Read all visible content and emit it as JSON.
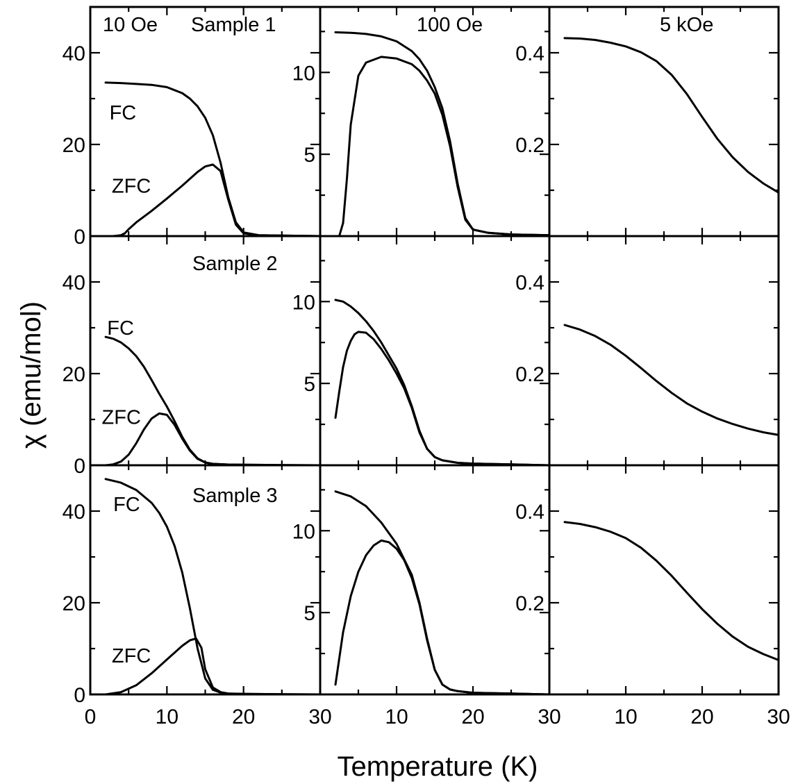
{
  "chart_data": {
    "type": "line",
    "xlabel": "Temperature (K)",
    "ylabel": "χ (emu/mol)",
    "xlim": [
      0,
      30
    ],
    "xticks": [
      0,
      10,
      20,
      30
    ],
    "xtick_labels": [
      "0",
      "10",
      "20",
      "30",
      "10",
      "20",
      "30",
      "10",
      "20",
      "30"
    ],
    "column_headers": [
      "10 Oe",
      "100 Oe",
      "5 kOe"
    ],
    "row_labels": [
      "Sample 1",
      "Sample 2",
      "Sample 3"
    ],
    "columns": [
      {
        "field": "10 Oe",
        "ylim": [
          0,
          50
        ],
        "yticks": [
          0,
          20,
          40
        ],
        "ytick_labels": [
          "0",
          "20",
          "40"
        ]
      },
      {
        "field": "100 Oe",
        "ylim": [
          0,
          14
        ],
        "yticks": [
          5,
          10
        ],
        "ytick_labels": [
          "5",
          "10"
        ]
      },
      {
        "field": "5 kOe",
        "ylim": [
          0,
          0.5
        ],
        "yticks": [
          0.2,
          0.4
        ],
        "ytick_labels": [
          "0.2",
          "0.4"
        ]
      }
    ],
    "panels": [
      {
        "row": 0,
        "col": 0,
        "series": [
          {
            "name": "FC",
            "label_pos": [
              2.5,
              27
            ],
            "x": [
              2,
              4,
              6,
              8,
              10,
              12,
              13,
              14,
              15,
              16,
              17,
              18,
              19,
              20,
              22,
              25,
              30
            ],
            "y": [
              33.5,
              33.4,
              33.2,
              33.0,
              32.5,
              31.2,
              30.0,
              28.3,
              25.8,
              22.0,
              16.0,
              8.5,
              3.0,
              0.8,
              0.2,
              0.1,
              0.0
            ]
          },
          {
            "name": "ZFC",
            "label_pos": [
              2.8,
              11
            ],
            "x": [
              2,
              3,
              4,
              4.5,
              5,
              6,
              8,
              10,
              12,
              14,
              15,
              16,
              17,
              18,
              19,
              20,
              22,
              25,
              30
            ],
            "y": [
              0.0,
              0.0,
              0.2,
              0.6,
              1.5,
              3.0,
              5.5,
              8.2,
              11.0,
              14.0,
              15.2,
              15.6,
              14.2,
              8.0,
              2.5,
              0.6,
              0.2,
              0.1,
              0.0
            ]
          }
        ]
      },
      {
        "row": 0,
        "col": 1,
        "series": [
          {
            "name": "FC",
            "x": [
              2,
              4,
              6,
              8,
              10,
              12,
              13,
              14,
              15,
              16,
              17,
              18,
              19,
              20,
              22,
              25,
              30
            ],
            "y": [
              12.45,
              12.42,
              12.35,
              12.2,
              11.9,
              11.3,
              10.8,
              10.1,
              9.1,
              7.8,
              5.8,
              3.2,
              1.1,
              0.4,
              0.2,
              0.1,
              0.05
            ]
          },
          {
            "name": "ZFC",
            "x": [
              2,
              2.5,
              3,
              3.5,
              4,
              5,
              6,
              8,
              10,
              12,
              13,
              14,
              15,
              16,
              17,
              18,
              19,
              20,
              22,
              25,
              30
            ],
            "y": [
              0.0,
              0.0,
              0.8,
              3.5,
              6.8,
              9.8,
              10.6,
              10.95,
              10.85,
              10.5,
              10.1,
              9.5,
              8.7,
              7.4,
              5.5,
              3.0,
              1.0,
              0.4,
              0.2,
              0.1,
              0.05
            ]
          }
        ]
      },
      {
        "row": 0,
        "col": 2,
        "series": [
          {
            "name": "5 kOe",
            "x": [
              2,
              4,
              6,
              8,
              10,
              12,
              14,
              16,
              18,
              20,
              22,
              24,
              26,
              28,
              30
            ],
            "y": [
              0.432,
              0.431,
              0.428,
              0.422,
              0.414,
              0.401,
              0.382,
              0.352,
              0.31,
              0.26,
              0.212,
              0.172,
              0.14,
              0.115,
              0.095
            ]
          }
        ]
      },
      {
        "row": 1,
        "col": 0,
        "series": [
          {
            "name": "FC",
            "label_pos": [
              2.2,
              30
            ],
            "x": [
              2,
              3,
              4,
              5,
              6,
              7,
              8,
              9,
              10,
              11,
              12,
              13,
              14,
              15,
              16,
              18,
              20,
              25,
              30
            ],
            "y": [
              28.0,
              27.6,
              26.8,
              25.5,
              23.8,
              21.5,
              18.6,
              15.6,
              12.8,
              9.6,
              6.2,
              3.4,
              1.5,
              0.6,
              0.3,
              0.15,
              0.1,
              0.05,
              0.0
            ]
          },
          {
            "name": "ZFC",
            "label_pos": [
              1.5,
              10.5
            ],
            "x": [
              2,
              3,
              4,
              5,
              6,
              7,
              8,
              9,
              10,
              11,
              12,
              13,
              14,
              15,
              16,
              18,
              20,
              25,
              30
            ],
            "y": [
              0.0,
              0.2,
              0.8,
              2.3,
              4.8,
              7.8,
              10.2,
              11.3,
              11.0,
              8.8,
              5.8,
              3.2,
              1.4,
              0.6,
              0.3,
              0.15,
              0.1,
              0.05,
              0.0
            ]
          }
        ]
      },
      {
        "row": 1,
        "col": 1,
        "series": [
          {
            "name": "FC",
            "x": [
              2,
              3,
              4,
              5,
              6,
              7,
              8,
              9,
              10,
              11,
              12,
              13,
              14,
              15,
              16,
              18,
              20,
              25,
              30
            ],
            "y": [
              10.1,
              10.0,
              9.7,
              9.3,
              8.8,
              8.2,
              7.5,
              6.7,
              5.9,
              4.9,
              3.6,
              2.1,
              1.0,
              0.5,
              0.3,
              0.15,
              0.1,
              0.05,
              0.0
            ]
          },
          {
            "name": "ZFC",
            "x": [
              2,
              2.5,
              3,
              3.5,
              4,
              4.5,
              5,
              6,
              7,
              8,
              9,
              10,
              11,
              12,
              13,
              14,
              15,
              16,
              18,
              20,
              25,
              30
            ],
            "y": [
              2.9,
              4.5,
              6.0,
              7.0,
              7.6,
              8.0,
              8.15,
              8.1,
              7.7,
              7.1,
              6.4,
              5.6,
              4.7,
              3.5,
              2.0,
              1.0,
              0.5,
              0.3,
              0.15,
              0.1,
              0.05,
              0.0
            ]
          }
        ]
      },
      {
        "row": 1,
        "col": 2,
        "series": [
          {
            "name": "5 kOe",
            "x": [
              2,
              4,
              6,
              8,
              10,
              12,
              14,
              16,
              18,
              20,
              22,
              24,
              26,
              28,
              30
            ],
            "y": [
              0.306,
              0.296,
              0.282,
              0.263,
              0.239,
              0.212,
              0.184,
              0.158,
              0.135,
              0.117,
              0.102,
              0.09,
              0.08,
              0.072,
              0.066
            ]
          }
        ]
      },
      {
        "row": 2,
        "col": 0,
        "series": [
          {
            "name": "FC",
            "label_pos": [
              3.0,
              41.5
            ],
            "x": [
              2,
              4,
              6,
              8,
              9,
              10,
              11,
              12,
              13,
              14,
              15,
              16,
              17,
              18,
              20,
              25,
              30
            ],
            "y": [
              47.0,
              46.2,
              44.6,
              41.8,
              39.6,
              36.6,
              32.4,
              26.6,
              18.8,
              10.0,
              3.5,
              1.0,
              0.4,
              0.2,
              0.1,
              0.05,
              0.0
            ]
          },
          {
            "name": "ZFC",
            "label_pos": [
              2.8,
              8.5
            ],
            "x": [
              2,
              4,
              6,
              8,
              10,
              12,
              13,
              13.8,
              14.5,
              15,
              16,
              17,
              18,
              20,
              25,
              30
            ],
            "y": [
              0.0,
              0.5,
              2.0,
              4.6,
              7.6,
              10.6,
              11.8,
              12.2,
              10.2,
              5.5,
              1.5,
              0.5,
              0.2,
              0.1,
              0.05,
              0.0
            ]
          }
        ]
      },
      {
        "row": 2,
        "col": 1,
        "series": [
          {
            "name": "FC",
            "x": [
              2,
              4,
              6,
              8,
              10,
              12,
              13,
              14,
              15,
              16,
              17,
              18,
              20,
              25,
              30
            ],
            "y": [
              12.4,
              12.1,
              11.5,
              10.5,
              9.2,
              7.3,
              5.6,
              3.4,
              1.5,
              0.6,
              0.3,
              0.2,
              0.1,
              0.05,
              0.0
            ]
          },
          {
            "name": "ZFC",
            "x": [
              2,
              2.5,
              3,
              4,
              5,
              6,
              7,
              8,
              9,
              10,
              11,
              12,
              13,
              14,
              15,
              16,
              17,
              18,
              20,
              25,
              30
            ],
            "y": [
              0.6,
              2.2,
              3.8,
              6.0,
              7.5,
              8.5,
              9.1,
              9.4,
              9.3,
              8.9,
              8.2,
              7.1,
              5.5,
              3.3,
              1.5,
              0.6,
              0.3,
              0.2,
              0.1,
              0.05,
              0.0
            ]
          }
        ]
      },
      {
        "row": 2,
        "col": 2,
        "series": [
          {
            "name": "5 kOe",
            "x": [
              2,
              4,
              6,
              8,
              10,
              12,
              14,
              16,
              18,
              20,
              22,
              24,
              26,
              28,
              30
            ],
            "y": [
              0.376,
              0.372,
              0.365,
              0.355,
              0.341,
              0.32,
              0.292,
              0.259,
              0.222,
              0.186,
              0.154,
              0.126,
              0.104,
              0.088,
              0.075
            ]
          }
        ]
      }
    ]
  }
}
